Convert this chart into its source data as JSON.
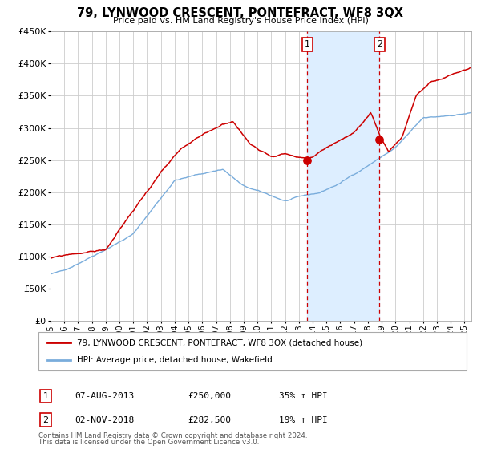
{
  "title": "79, LYNWOOD CRESCENT, PONTEFRACT, WF8 3QX",
  "subtitle": "Price paid vs. HM Land Registry's House Price Index (HPI)",
  "ylim": [
    0,
    450000
  ],
  "yticks": [
    0,
    50000,
    100000,
    150000,
    200000,
    250000,
    300000,
    350000,
    400000,
    450000
  ],
  "xlim_start": 1995.0,
  "xlim_end": 2025.5,
  "transaction1_date": 2013.6,
  "transaction1_price": 250000,
  "transaction2_date": 2018.84,
  "transaction2_price": 282500,
  "shade_color": "#ddeeff",
  "vline_color": "#cc0000",
  "property_line_color": "#cc0000",
  "hpi_line_color": "#7aaddc",
  "background_color": "#ffffff",
  "grid_color": "#cccccc",
  "legend1": "79, LYNWOOD CRESCENT, PONTEFRACT, WF8 3QX (detached house)",
  "legend2": "HPI: Average price, detached house, Wakefield",
  "footer1": "Contains HM Land Registry data © Crown copyright and database right 2024.",
  "footer2": "This data is licensed under the Open Government Licence v3.0.",
  "table_row1_num": "1",
  "table_row1_date": "07-AUG-2013",
  "table_row1_price": "£250,000",
  "table_row1_pct": "35% ↑ HPI",
  "table_row2_num": "2",
  "table_row2_date": "02-NOV-2018",
  "table_row2_price": "£282,500",
  "table_row2_pct": "19% ↑ HPI"
}
